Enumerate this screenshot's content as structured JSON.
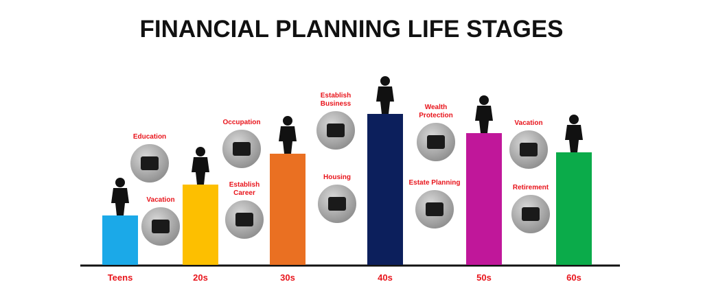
{
  "title": "FINANCIAL PLANNING LIFE STAGES",
  "stages": [
    {
      "label": "Teens",
      "color": "#1ba9e8"
    },
    {
      "label": "20s",
      "color": "#fdbf00"
    },
    {
      "label": "30s",
      "color": "#ea7022"
    },
    {
      "label": "40s",
      "color": "#0c1f5c"
    },
    {
      "label": "50s",
      "color": "#c0179a"
    },
    {
      "label": "60s",
      "color": "#0bab4a"
    }
  ],
  "goals": [
    {
      "label": [
        "Education"
      ]
    },
    {
      "label": [
        "Vacation"
      ]
    },
    {
      "label": [
        "Occupation"
      ]
    },
    {
      "label": [
        "Establish",
        "Career"
      ]
    },
    {
      "label": [
        "Establish",
        "Business"
      ]
    },
    {
      "label": [
        "Housing"
      ]
    },
    {
      "label": [
        "Wealth",
        "Protection"
      ]
    },
    {
      "label": [
        "Estate Planning"
      ]
    },
    {
      "label": [
        "Vacation"
      ]
    },
    {
      "label": [
        "Retirement"
      ]
    }
  ]
}
